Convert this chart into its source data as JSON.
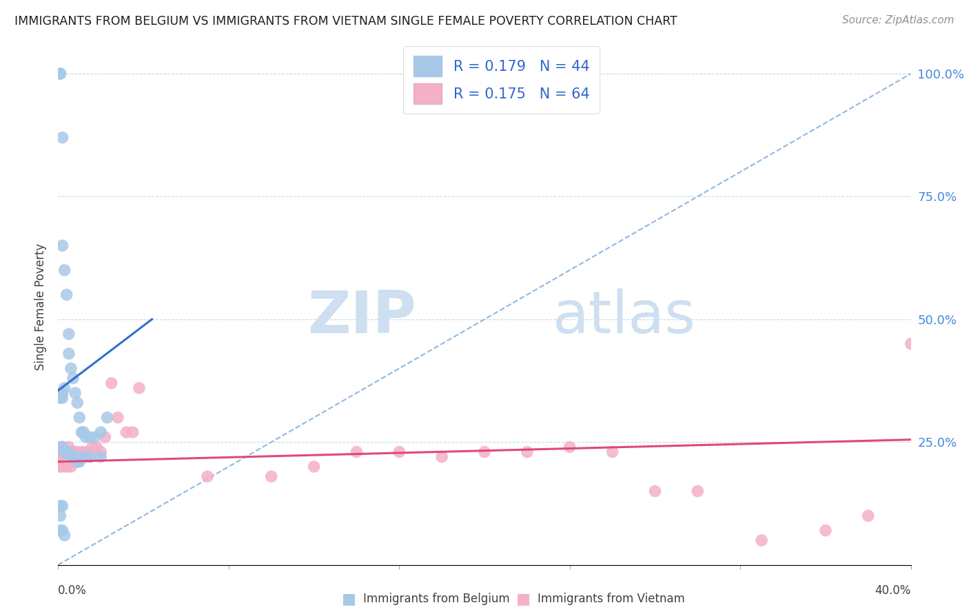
{
  "title": "IMMIGRANTS FROM BELGIUM VS IMMIGRANTS FROM VIETNAM SINGLE FEMALE POVERTY CORRELATION CHART",
  "source": "Source: ZipAtlas.com",
  "ylabel": "Single Female Poverty",
  "y_ticks": [
    0.0,
    0.25,
    0.5,
    0.75,
    1.0
  ],
  "y_tick_labels": [
    "",
    "25.0%",
    "50.0%",
    "75.0%",
    "100.0%"
  ],
  "xlim": [
    0.0,
    0.4
  ],
  "ylim": [
    0.0,
    1.05
  ],
  "belgium_R": 0.179,
  "belgium_N": 44,
  "vietnam_R": 0.175,
  "vietnam_N": 64,
  "belgium_color": "#a8c8e8",
  "vietnam_color": "#f4b0c8",
  "belgium_line_color": "#3070d0",
  "vietnam_line_color": "#e04878",
  "ref_line_color": "#90b8e0",
  "ref_line_style": "--",
  "legend_label_belgium": "Immigrants from Belgium",
  "legend_label_vietnam": "Immigrants from Vietnam",
  "watermark_zip": "ZIP",
  "watermark_atlas": "atlas",
  "bel_line_x": [
    0.0,
    0.044
  ],
  "bel_line_y": [
    0.355,
    0.5
  ],
  "viet_line_x": [
    0.0,
    0.4
  ],
  "viet_line_y": [
    0.21,
    0.255
  ],
  "ref_line_x": [
    0.0,
    0.4
  ],
  "ref_line_y": [
    0.0,
    1.0
  ],
  "belgium_x": [
    0.001,
    0.001,
    0.002,
    0.002,
    0.003,
    0.004,
    0.005,
    0.005,
    0.006,
    0.007,
    0.008,
    0.009,
    0.01,
    0.011,
    0.012,
    0.013,
    0.015,
    0.017,
    0.02,
    0.023,
    0.001,
    0.002,
    0.003,
    0.004,
    0.005,
    0.006,
    0.007,
    0.008,
    0.009,
    0.01,
    0.012,
    0.015,
    0.02,
    0.001,
    0.002,
    0.001,
    0.002,
    0.003,
    0.001,
    0.002,
    0.001,
    0.001,
    0.002,
    0.003
  ],
  "belgium_y": [
    1.0,
    1.0,
    0.87,
    0.65,
    0.6,
    0.55,
    0.47,
    0.43,
    0.4,
    0.38,
    0.35,
    0.33,
    0.3,
    0.27,
    0.27,
    0.26,
    0.26,
    0.26,
    0.27,
    0.3,
    0.24,
    0.24,
    0.23,
    0.23,
    0.23,
    0.22,
    0.22,
    0.22,
    0.21,
    0.21,
    0.22,
    0.22,
    0.22,
    0.34,
    0.34,
    0.35,
    0.35,
    0.36,
    0.12,
    0.12,
    0.1,
    0.07,
    0.07,
    0.06
  ],
  "vietnam_x": [
    0.001,
    0.001,
    0.001,
    0.001,
    0.001,
    0.001,
    0.001,
    0.002,
    0.002,
    0.002,
    0.002,
    0.002,
    0.003,
    0.003,
    0.003,
    0.003,
    0.004,
    0.004,
    0.004,
    0.004,
    0.005,
    0.005,
    0.005,
    0.005,
    0.006,
    0.006,
    0.006,
    0.007,
    0.007,
    0.008,
    0.008,
    0.009,
    0.01,
    0.01,
    0.011,
    0.012,
    0.013,
    0.014,
    0.015,
    0.016,
    0.018,
    0.02,
    0.022,
    0.025,
    0.028,
    0.032,
    0.035,
    0.038,
    0.07,
    0.1,
    0.12,
    0.14,
    0.16,
    0.18,
    0.2,
    0.22,
    0.24,
    0.26,
    0.28,
    0.3,
    0.33,
    0.36,
    0.38,
    0.4
  ],
  "vietnam_y": [
    0.22,
    0.22,
    0.22,
    0.21,
    0.23,
    0.2,
    0.2,
    0.22,
    0.22,
    0.23,
    0.24,
    0.21,
    0.23,
    0.22,
    0.21,
    0.2,
    0.23,
    0.22,
    0.21,
    0.2,
    0.24,
    0.23,
    0.22,
    0.21,
    0.23,
    0.22,
    0.2,
    0.23,
    0.21,
    0.23,
    0.22,
    0.21,
    0.23,
    0.22,
    0.22,
    0.23,
    0.22,
    0.23,
    0.22,
    0.24,
    0.24,
    0.23,
    0.26,
    0.37,
    0.3,
    0.27,
    0.27,
    0.36,
    0.18,
    0.18,
    0.2,
    0.23,
    0.23,
    0.22,
    0.23,
    0.23,
    0.24,
    0.23,
    0.15,
    0.15,
    0.05,
    0.07,
    0.1,
    0.45
  ]
}
